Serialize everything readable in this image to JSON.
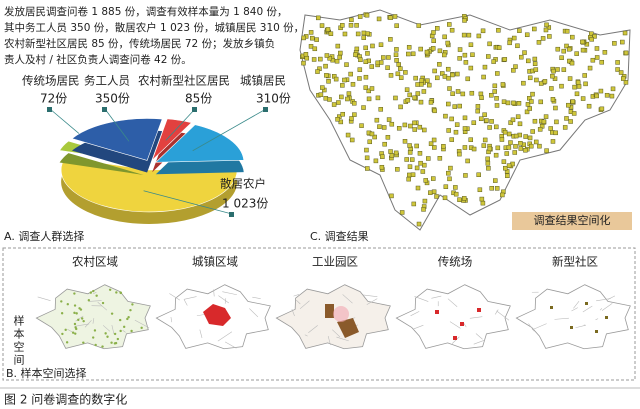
{
  "panel_a": {
    "intro": [
      "发放居民调查问卷 1 885 份，调查有效样本量为 1 840 份，",
      "其中务工人员 350 份，散居农户 1 023 份，城镇居民 310 份，",
      "农村新型社区居民 85 份，传统场居民 72 份；发放乡镇负",
      "责人及村 / 社区负责人调查问卷 42 份。"
    ],
    "label": "A. 调查人群选择"
  },
  "chart_data": {
    "type": "pie",
    "categories": [
      "散居农户",
      "传统场居民",
      "务工人员",
      "农村新型社区居民",
      "城镇居民"
    ],
    "values": [
      1023,
      72,
      350,
      85,
      310
    ],
    "value_labels": [
      "1 023份",
      "72份",
      "350份",
      "85份",
      "310份"
    ],
    "colors": [
      "#efd43e",
      "#a9c93c",
      "#2d5ea8",
      "#e2413f",
      "#2aa0d8"
    ]
  },
  "panel_c": {
    "label": "C. 调查结果",
    "map_tag": "调查结果空间化"
  },
  "panel_b": {
    "label": "B. 样本空间选择",
    "side_label": "样本空间",
    "maps": [
      "农村区域",
      "城镇区域",
      "工业园区",
      "传统场",
      "新型社区"
    ]
  },
  "caption": "图 2  问卷调查的数字化"
}
